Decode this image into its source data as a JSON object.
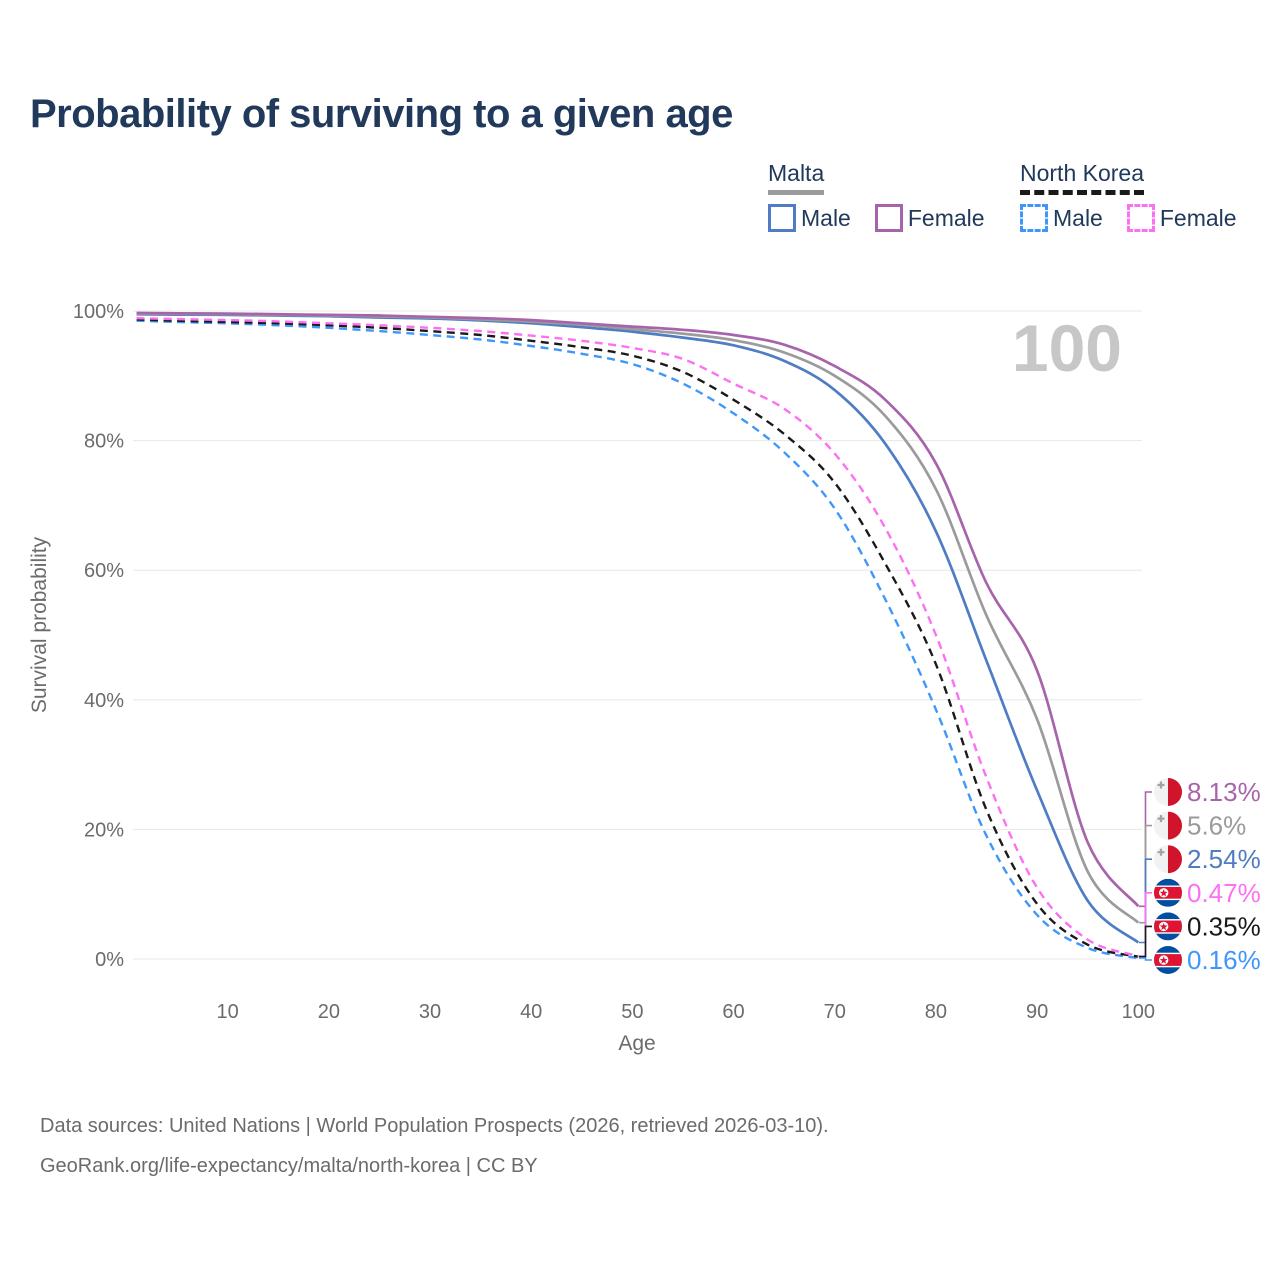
{
  "title": "Probability of surviving to a given age",
  "watermark": "100",
  "legend": {
    "groups": [
      {
        "label": "Malta",
        "line_style": "solid",
        "line_color": "#9b9b9b",
        "items": [
          {
            "label": "Male",
            "color": "#4f7cc3",
            "dashed": false
          },
          {
            "label": "Female",
            "color": "#a864ab",
            "dashed": false
          }
        ]
      },
      {
        "label": "North Korea",
        "line_style": "dashed",
        "line_color": "#1a1a1a",
        "items": [
          {
            "label": "Male",
            "color": "#3f97fb",
            "dashed": true
          },
          {
            "label": "Female",
            "color": "#fc71f2",
            "dashed": true
          }
        ]
      }
    ]
  },
  "chart_data": {
    "type": "line",
    "title": "Probability of surviving to a given age",
    "xlabel": "Age",
    "ylabel": "Survival probability",
    "x_ticks": [
      10,
      20,
      30,
      40,
      50,
      60,
      70,
      80,
      90,
      100
    ],
    "y_tick_labels": [
      "0%",
      "20%",
      "40%",
      "60%",
      "80%",
      "100%"
    ],
    "xlim": [
      1,
      100
    ],
    "ylim": [
      0,
      100
    ],
    "grid": "horizontal",
    "legend_position": "top-right",
    "ages": [
      1,
      5,
      10,
      15,
      20,
      25,
      30,
      35,
      40,
      45,
      50,
      55,
      60,
      65,
      70,
      75,
      80,
      85,
      90,
      95,
      100
    ],
    "series": [
      {
        "id": "malta-female",
        "name": "Malta Female",
        "color": "#a864ab",
        "dashed": false,
        "flag": "malta",
        "end_label": "8.13%",
        "values": [
          99.7,
          99.65,
          99.6,
          99.5,
          99.4,
          99.3,
          99.1,
          98.9,
          98.6,
          98.1,
          97.6,
          97.1,
          96.3,
          94.8,
          91.5,
          86.3,
          76.5,
          58,
          44.5,
          18,
          8.13
        ]
      },
      {
        "id": "malta-average",
        "name": "Malta (both sexes)",
        "color": "#9b9b9b",
        "dashed": false,
        "flag": "malta",
        "end_label": "5.6%",
        "values": [
          99.6,
          99.55,
          99.5,
          99.4,
          99.3,
          99.15,
          99.0,
          98.7,
          98.35,
          97.9,
          97.2,
          96.5,
          95.5,
          93.6,
          90.0,
          83.8,
          72.5,
          53,
          37,
          13.5,
          5.6
        ]
      },
      {
        "id": "malta-male",
        "name": "Malta Male",
        "color": "#4f7cc3",
        "dashed": false,
        "flag": "malta",
        "end_label": "2.54%",
        "values": [
          99.5,
          99.45,
          99.4,
          99.3,
          99.2,
          99.0,
          98.85,
          98.55,
          98.1,
          97.5,
          96.8,
          95.9,
          94.7,
          92.3,
          87.8,
          79.5,
          66,
          46,
          26,
          9,
          2.54
        ]
      },
      {
        "id": "north-korea-female",
        "name": "North Korea Female",
        "color": "#fc71f2",
        "dashed": true,
        "flag": "north-korea",
        "end_label": "0.47%",
        "values": [
          98.9,
          98.75,
          98.6,
          98.4,
          98.1,
          97.8,
          97.4,
          96.9,
          96.2,
          95.4,
          94.3,
          92.6,
          88.8,
          84.9,
          78.0,
          66.5,
          50,
          28,
          11,
          3,
          0.47
        ]
      },
      {
        "id": "north-korea-average",
        "name": "North Korea (both sexes)",
        "color": "#1a1a1a",
        "dashed": true,
        "flag": "north-korea",
        "end_label": "0.35%",
        "values": [
          98.7,
          98.5,
          98.3,
          98.1,
          97.8,
          97.4,
          96.9,
          96.3,
          95.4,
          94.4,
          93.1,
          90.6,
          86.3,
          81.0,
          73.5,
          61,
          45.5,
          23,
          8.5,
          2.2,
          0.35
        ]
      },
      {
        "id": "north-korea-male",
        "name": "North Korea Male",
        "color": "#3f97fb",
        "dashed": true,
        "flag": "north-korea",
        "end_label": "0.16%",
        "values": [
          98.5,
          98.3,
          98.1,
          97.8,
          97.4,
          96.9,
          96.3,
          95.6,
          94.6,
          93.4,
          91.8,
          88.8,
          84.2,
          78.2,
          69.5,
          55.5,
          38.5,
          19,
          6.8,
          1.7,
          0.16
        ]
      }
    ]
  },
  "footer": {
    "line1": "Data sources: United Nations | World Population Prospects (2026, retrieved 2026-03-10).",
    "line2": "GeoRank.org/life-expectancy/malta/north-korea | CC BY"
  }
}
